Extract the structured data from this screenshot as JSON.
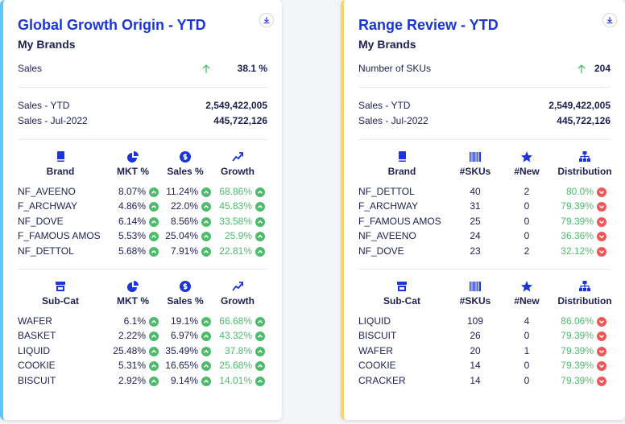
{
  "cards": [
    {
      "title": "Global Growth Origin - YTD",
      "subtitle": "My Brands",
      "kpi": {
        "label": "Sales",
        "value": "38.1 %"
      },
      "stats": [
        {
          "label": "Sales - YTD",
          "value": "2,549,422,005"
        },
        {
          "label": "Sales - Jul-2022",
          "value": "445,722,126"
        }
      ],
      "tables": [
        {
          "headers": [
            "Brand",
            "MKT %",
            "Sales %",
            "Growth"
          ],
          "rows": [
            [
              "NF_AVEENO",
              "8.07%",
              "11.24%",
              "68.86%"
            ],
            [
              "F_ARCHWAY",
              "4.86%",
              "22.0%",
              "45.83%"
            ],
            [
              "NF_DOVE",
              "6.14%",
              "8.56%",
              "33.58%"
            ],
            [
              "F_FAMOUS AMOS",
              "5.53%",
              "25.04%",
              "25.9%"
            ],
            [
              "NF_DETTOL",
              "5.68%",
              "7.91%",
              "22.81%"
            ]
          ]
        },
        {
          "headers": [
            "Sub-Cat",
            "MKT %",
            "Sales %",
            "Growth"
          ],
          "rows": [
            [
              "WAFER",
              "6.1%",
              "19.1%",
              "66.68%"
            ],
            [
              "BASKET",
              "2.22%",
              "6.97%",
              "43.32%"
            ],
            [
              "LIQUID",
              "25.48%",
              "35.49%",
              "37.8%"
            ],
            [
              "COOKIE",
              "5.31%",
              "16.65%",
              "25.68%"
            ],
            [
              "BISCUIT",
              "2.92%",
              "9.14%",
              "14.01%"
            ]
          ]
        }
      ]
    },
    {
      "title": "Range Review - YTD",
      "subtitle": "My Brands",
      "kpi": {
        "label": "Number of SKUs",
        "value": "204"
      },
      "stats": [
        {
          "label": "Sales - YTD",
          "value": "2,549,422,005"
        },
        {
          "label": "Sales - Jul-2022",
          "value": "445,722,126"
        }
      ],
      "tables": [
        {
          "headers": [
            "Brand",
            "#SKUs",
            "#New",
            "Distribution"
          ],
          "rows": [
            [
              "NF_DETTOL",
              "40",
              "2",
              "80.0%"
            ],
            [
              "F_ARCHWAY",
              "31",
              "0",
              "79.39%"
            ],
            [
              "F_FAMOUS AMOS",
              "25",
              "0",
              "79.39%"
            ],
            [
              "NF_AVEENO",
              "24",
              "0",
              "36.36%"
            ],
            [
              "NF_DOVE",
              "23",
              "2",
              "32.12%"
            ]
          ]
        },
        {
          "headers": [
            "Sub-Cat",
            "#SKUs",
            "#New",
            "Distribution"
          ],
          "rows": [
            [
              "LIQUID",
              "109",
              "4",
              "86.06%"
            ],
            [
              "BISCUIT",
              "26",
              "0",
              "79.39%"
            ],
            [
              "WAFER",
              "20",
              "1",
              "79.39%"
            ],
            [
              "COOKIE",
              "14",
              "0",
              "79.39%"
            ],
            [
              "CRACKER",
              "14",
              "0",
              "79.39%"
            ]
          ]
        }
      ]
    }
  ]
}
